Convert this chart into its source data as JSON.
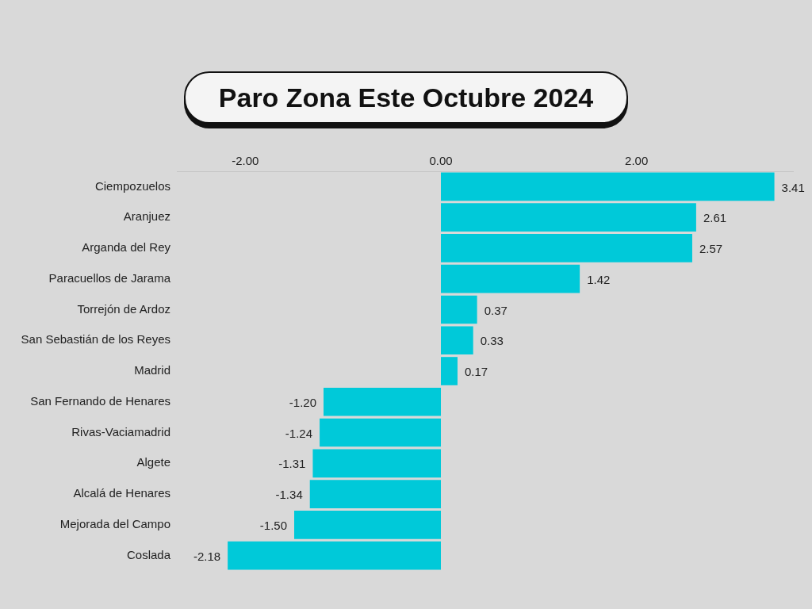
{
  "chart_data": {
    "type": "bar",
    "orientation": "horizontal",
    "title": "Paro Zona Este Octubre 2024",
    "categories": [
      "Ciempozuelos",
      "Aranjuez",
      "Arganda del Rey",
      "Paracuellos de Jarama",
      "Torrejón de Ardoz",
      "San Sebastián de los Reyes",
      "Madrid",
      "San Fernando de Henares",
      "Rivas-Vaciamadrid",
      "Algete",
      "Alcalá de Henares",
      "Mejorada del Campo",
      "Coslada"
    ],
    "values": [
      3.41,
      2.61,
      2.57,
      1.42,
      0.37,
      0.33,
      0.17,
      -1.2,
      -1.24,
      -1.31,
      -1.34,
      -1.5,
      -2.18
    ],
    "value_labels": [
      "3.41",
      "2.61",
      "2.57",
      "1.42",
      "0.37",
      "0.33",
      "0.17",
      "-1.20",
      "-1.24",
      "-1.31",
      "-1.34",
      "-1.50",
      "-2.18"
    ],
    "color": "#00c9d9",
    "xlim": [
      -2.7,
      3.6
    ],
    "xticks": [
      {
        "value": -2,
        "label": "-2.00"
      },
      {
        "value": 0,
        "label": "0.00"
      },
      {
        "value": 2,
        "label": "2.00"
      }
    ],
    "grid": false,
    "legend": false
  }
}
